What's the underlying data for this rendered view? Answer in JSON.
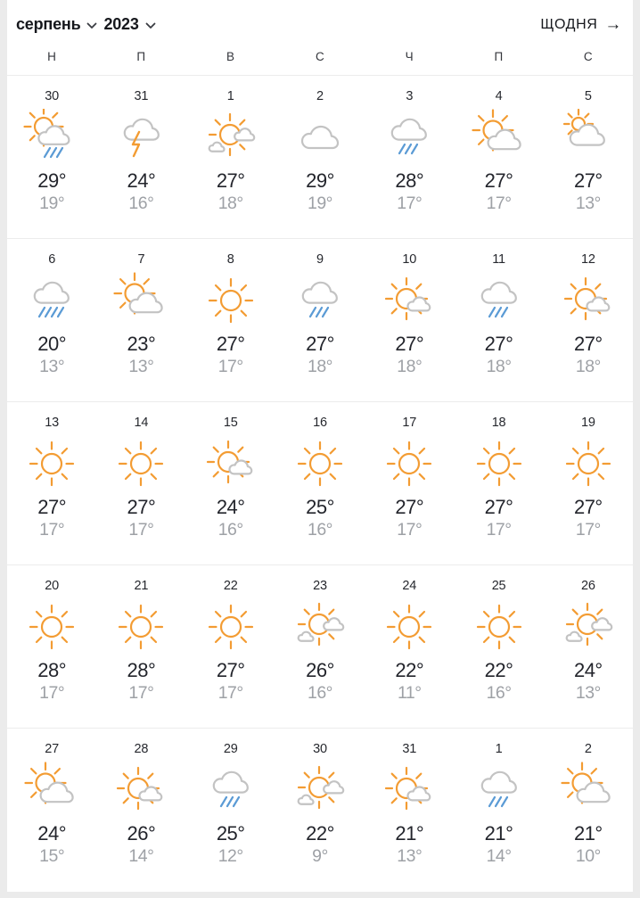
{
  "header": {
    "month_label": "серпень",
    "year_label": "2023",
    "mode_label": "ЩОДНЯ",
    "arrow": "→"
  },
  "weekdays": [
    "Н",
    "П",
    "В",
    "С",
    "Ч",
    "П",
    "С"
  ],
  "colors": {
    "sun": "#F39C33",
    "cloud": "#C3C3C3",
    "rain": "#5B9BD5",
    "high_text": "#23252C",
    "low_text": "#9EA1A6",
    "divider": "#ECECEC",
    "page_bg": "#EBEBEB"
  },
  "days": [
    {
      "date": "30",
      "icon": "sun-cloud-rain",
      "high": "29°",
      "low": "19°"
    },
    {
      "date": "31",
      "icon": "thunder",
      "high": "24°",
      "low": "16°"
    },
    {
      "date": "1",
      "icon": "sun-clouds",
      "high": "27°",
      "low": "18°"
    },
    {
      "date": "2",
      "icon": "cloud",
      "high": "29°",
      "low": "19°"
    },
    {
      "date": "3",
      "icon": "cloud-rain",
      "high": "28°",
      "low": "17°"
    },
    {
      "date": "4",
      "icon": "sun-cloud",
      "high": "27°",
      "low": "17°"
    },
    {
      "date": "5",
      "icon": "cloud-sun",
      "high": "27°",
      "low": "13°"
    },
    {
      "date": "6",
      "icon": "cloud-heavy-rain",
      "high": "20°",
      "low": "13°"
    },
    {
      "date": "7",
      "icon": "sun-cloud",
      "high": "23°",
      "low": "13°"
    },
    {
      "date": "8",
      "icon": "sun",
      "high": "27°",
      "low": "17°"
    },
    {
      "date": "9",
      "icon": "cloud-rain",
      "high": "27°",
      "low": "18°"
    },
    {
      "date": "10",
      "icon": "mostly-sunny",
      "high": "27°",
      "low": "18°"
    },
    {
      "date": "11",
      "icon": "cloud-rain",
      "high": "27°",
      "low": "18°"
    },
    {
      "date": "12",
      "icon": "mostly-sunny",
      "high": "27°",
      "low": "18°"
    },
    {
      "date": "13",
      "icon": "sun",
      "high": "27°",
      "low": "17°"
    },
    {
      "date": "14",
      "icon": "sun",
      "high": "27°",
      "low": "17°"
    },
    {
      "date": "15",
      "icon": "mostly-sunny",
      "high": "24°",
      "low": "16°"
    },
    {
      "date": "16",
      "icon": "sun",
      "high": "25°",
      "low": "16°"
    },
    {
      "date": "17",
      "icon": "sun",
      "high": "27°",
      "low": "17°"
    },
    {
      "date": "18",
      "icon": "sun",
      "high": "27°",
      "low": "17°"
    },
    {
      "date": "19",
      "icon": "sun",
      "high": "27°",
      "low": "17°"
    },
    {
      "date": "20",
      "icon": "sun",
      "high": "28°",
      "low": "17°"
    },
    {
      "date": "21",
      "icon": "sun",
      "high": "28°",
      "low": "17°"
    },
    {
      "date": "22",
      "icon": "sun",
      "high": "27°",
      "low": "17°"
    },
    {
      "date": "23",
      "icon": "sun-clouds",
      "high": "26°",
      "low": "16°"
    },
    {
      "date": "24",
      "icon": "sun",
      "high": "22°",
      "low": "11°"
    },
    {
      "date": "25",
      "icon": "sun",
      "high": "22°",
      "low": "16°"
    },
    {
      "date": "26",
      "icon": "sun-clouds",
      "high": "24°",
      "low": "13°"
    },
    {
      "date": "27",
      "icon": "sun-cloud",
      "high": "24°",
      "low": "15°"
    },
    {
      "date": "28",
      "icon": "mostly-sunny",
      "high": "26°",
      "low": "14°"
    },
    {
      "date": "29",
      "icon": "cloud-rain",
      "high": "25°",
      "low": "12°"
    },
    {
      "date": "30",
      "icon": "sun-clouds",
      "high": "22°",
      "low": "9°"
    },
    {
      "date": "31",
      "icon": "mostly-sunny",
      "high": "21°",
      "low": "13°"
    },
    {
      "date": "1",
      "icon": "cloud-rain",
      "high": "21°",
      "low": "14°"
    },
    {
      "date": "2",
      "icon": "sun-cloud",
      "high": "21°",
      "low": "10°"
    }
  ]
}
